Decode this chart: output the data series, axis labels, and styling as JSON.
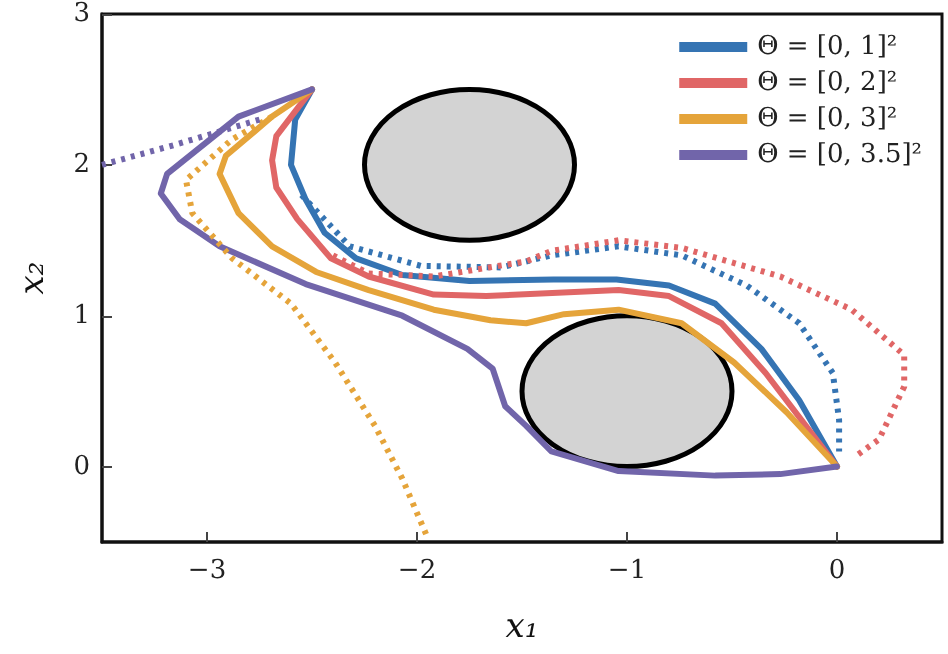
{
  "chart_data": {
    "type": "line",
    "xlabel": "x₁",
    "ylabel": "x₂",
    "xlim": [
      -3.5,
      0.5
    ],
    "xticks": [
      -3,
      -2,
      -1,
      0
    ],
    "ylim": [
      -0.5,
      3
    ],
    "yticks": [
      0,
      1,
      2,
      3
    ],
    "grid": false,
    "legend": "top right",
    "marker": "none",
    "series": [
      {
        "name": "Θ = [0, 1]²",
        "color": "#3574b3",
        "line_style": "solid",
        "x": [
          -2.5,
          -2.58,
          -2.6,
          -2.53,
          -2.44,
          -2.29,
          -2.07,
          -1.75,
          -1.35,
          -1.05,
          -0.8,
          -0.58,
          -0.36,
          -0.18,
          0
        ],
        "values": [
          2.5,
          2.3,
          2.0,
          1.77,
          1.55,
          1.38,
          1.27,
          1.23,
          1.24,
          1.24,
          1.2,
          1.08,
          0.78,
          0.44,
          0
        ]
      },
      {
        "name": "Θ = [0, 2]²",
        "color": "#e06666",
        "line_style": "solid",
        "x": [
          -2.5,
          -2.67,
          -2.69,
          -2.67,
          -2.57,
          -2.41,
          -2.23,
          -1.92,
          -1.67,
          -1.04,
          -0.8,
          -0.55,
          -0.34,
          0
        ],
        "values": [
          2.5,
          2.19,
          2.03,
          1.85,
          1.64,
          1.38,
          1.26,
          1.14,
          1.13,
          1.17,
          1.13,
          0.95,
          0.62,
          0
        ]
      },
      {
        "name": "Θ = [0, 3]²",
        "color": "#e5a43a",
        "line_style": "solid",
        "x": [
          -2.5,
          -2.69,
          -2.91,
          -2.94,
          -2.85,
          -2.69,
          -2.48,
          -2.23,
          -1.92,
          -1.65,
          -1.48,
          -1.3,
          -1.04,
          -0.74,
          -0.49,
          -0.24,
          0
        ],
        "values": [
          2.5,
          2.32,
          2.06,
          1.94,
          1.68,
          1.46,
          1.29,
          1.17,
          1.04,
          0.97,
          0.95,
          1.01,
          1.04,
          0.95,
          0.69,
          0.36,
          0
        ]
      },
      {
        "name": "Θ = [0, 3.5]²",
        "color": "#7165aa",
        "line_style": "solid",
        "x": [
          -2.5,
          -2.85,
          -3.19,
          -3.22,
          -3.13,
          -2.94,
          -2.53,
          -2.07,
          -1.76,
          -1.64,
          -1.58,
          -1.48,
          -1.36,
          -1.04,
          -0.58,
          -0.27,
          0
        ],
        "values": [
          2.5,
          2.32,
          1.94,
          1.81,
          1.64,
          1.46,
          1.21,
          1.0,
          0.78,
          0.65,
          0.4,
          0.27,
          0.1,
          -0.03,
          -0.06,
          -0.05,
          0
        ]
      },
      {
        "color": "#3574b3",
        "line_style": "dotted",
        "x": [
          -2.55,
          -2.32,
          -1.98,
          -1.6,
          -1.36,
          -1.04,
          -0.74,
          -0.43,
          -0.18,
          -0.02,
          0.01,
          0.01
        ],
        "values": [
          1.8,
          1.46,
          1.33,
          1.32,
          1.4,
          1.46,
          1.4,
          1.2,
          0.95,
          0.62,
          0.31,
          0.1
        ]
      },
      {
        "color": "#e06666",
        "line_style": "dotted",
        "x": [
          -2.4,
          -2.23,
          -1.92,
          -1.48,
          -1.36,
          -1.04,
          -0.74,
          -0.27,
          0.07,
          0.32,
          0.32,
          0.2,
          0.1
        ],
        "values": [
          1.4,
          1.28,
          1.26,
          1.36,
          1.43,
          1.5,
          1.45,
          1.26,
          1.04,
          0.74,
          0.53,
          0.18,
          0.08
        ]
      },
      {
        "color": "#e5a43a",
        "line_style": "dotted",
        "x": [
          -2.69,
          -2.88,
          -3.1,
          -3.07,
          -2.88,
          -2.6,
          -2.39,
          -2.2,
          -2.07,
          -1.95
        ],
        "values": [
          2.32,
          2.17,
          1.9,
          1.68,
          1.38,
          1.08,
          0.69,
          0.27,
          -0.08,
          -0.47
        ]
      },
      {
        "color": "#7165aa",
        "line_style": "dotted",
        "x": [
          -2.75,
          -3.16,
          -3.5
        ],
        "values": [
          2.3,
          2.13,
          2.0
        ]
      }
    ]
  }
}
